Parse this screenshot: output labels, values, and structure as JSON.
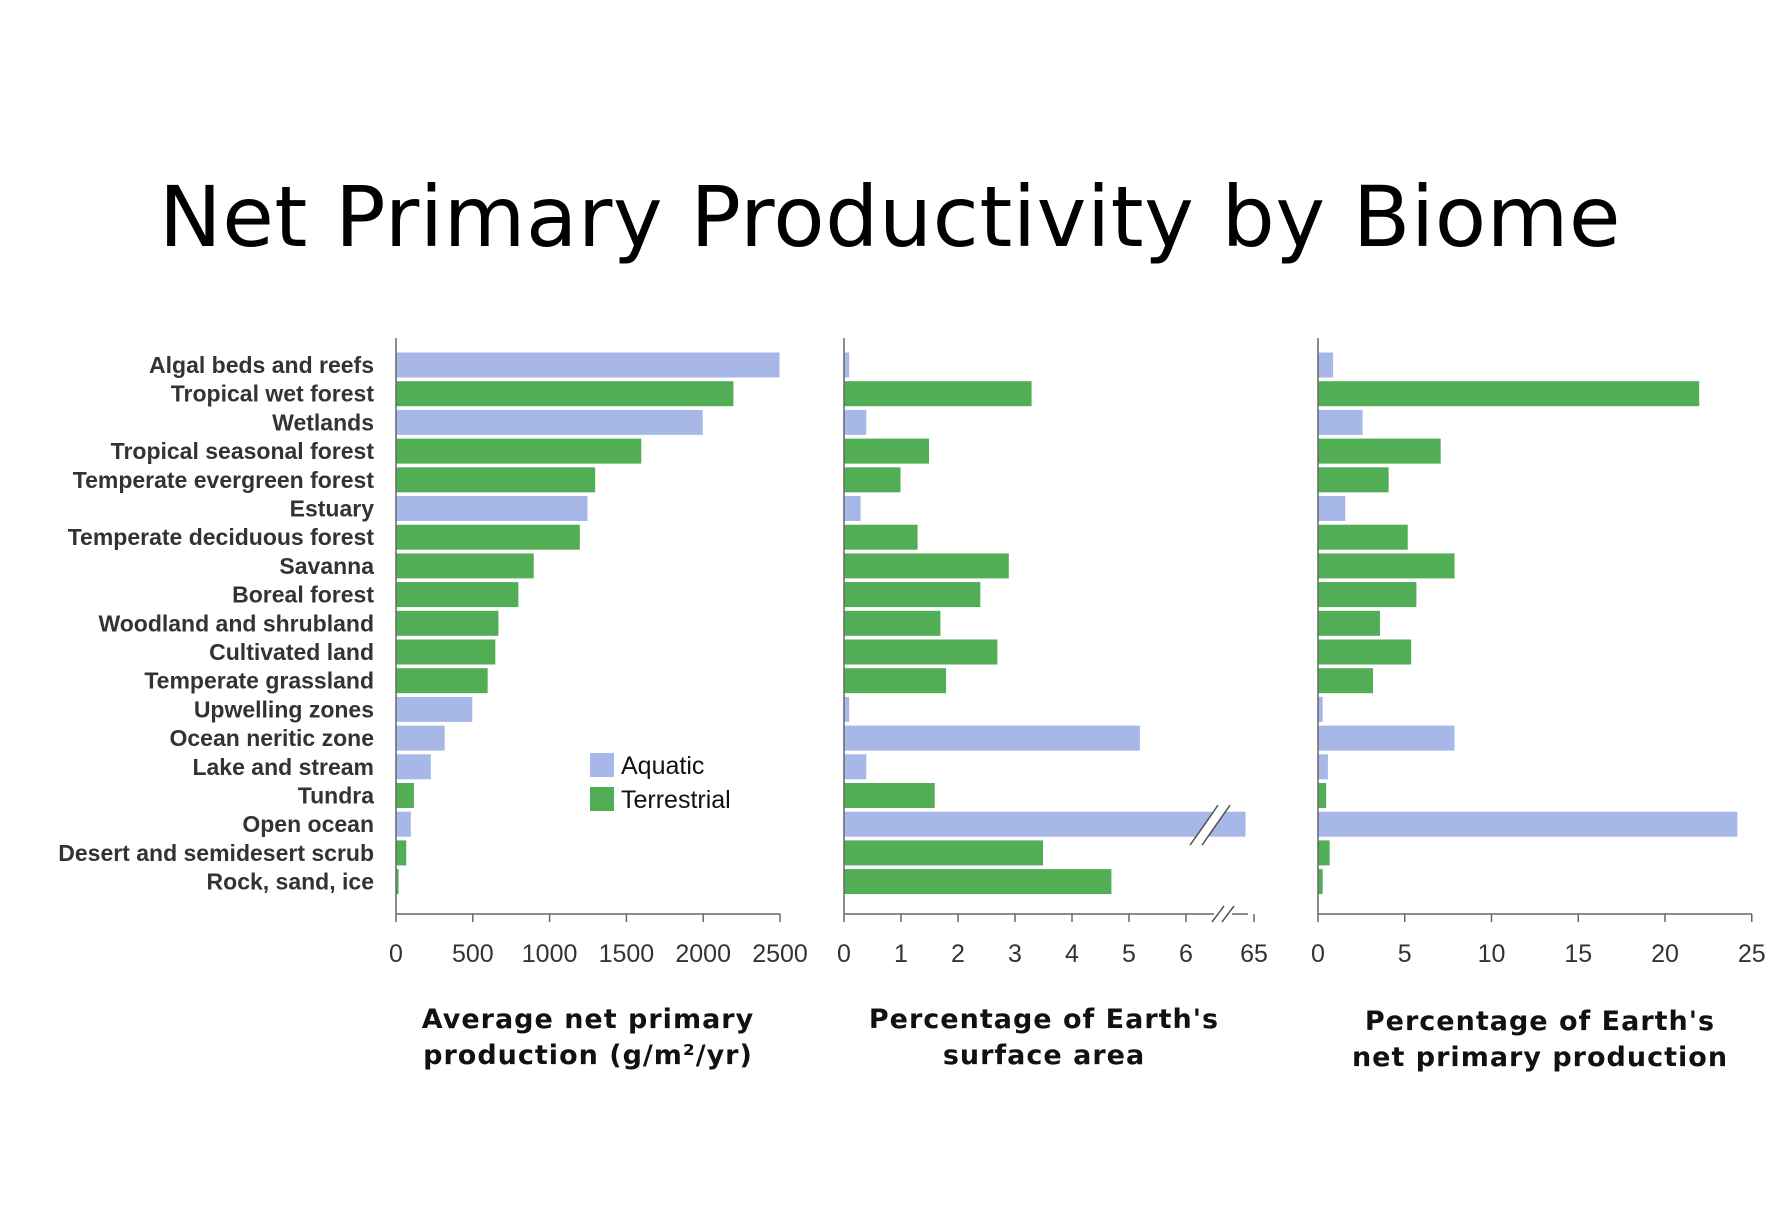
{
  "title": "Net Primary Productivity by Biome",
  "colors": {
    "Aquatic": "#a7b8e8",
    "Terrestrial": "#52ae55"
  },
  "legend": [
    {
      "label": "Aquatic",
      "type": "Aquatic"
    },
    {
      "label": "Terrestrial",
      "type": "Terrestrial"
    }
  ],
  "chart_data": [
    {
      "type": "bar",
      "orientation": "horizontal",
      "xlabel": [
        "Average net primary",
        "production (g/m²/yr)"
      ],
      "xlim": [
        0,
        2500
      ],
      "ticks": [
        "0",
        "500",
        "1000",
        "1500",
        "2000",
        "2500"
      ],
      "tick_values": [
        0,
        500,
        1000,
        1500,
        2000,
        2500
      ],
      "categories": [
        "Algal beds and reefs",
        "Tropical wet forest",
        "Wetlands",
        "Tropical seasonal forest",
        "Temperate evergreen forest",
        "Estuary",
        "Temperate deciduous forest",
        "Savanna",
        "Boreal forest",
        "Woodland and shrubland",
        "Cultivated land",
        "Temperate grassland",
        "Upwelling zones",
        "Ocean neritic zone",
        "Lake and stream",
        "Tundra",
        "Open ocean",
        "Desert and semidesert scrub",
        "Rock, sand, ice"
      ],
      "types": [
        "Aquatic",
        "Terrestrial",
        "Aquatic",
        "Terrestrial",
        "Terrestrial",
        "Aquatic",
        "Terrestrial",
        "Terrestrial",
        "Terrestrial",
        "Terrestrial",
        "Terrestrial",
        "Terrestrial",
        "Aquatic",
        "Aquatic",
        "Aquatic",
        "Terrestrial",
        "Aquatic",
        "Terrestrial",
        "Terrestrial"
      ],
      "values": [
        2500,
        2200,
        2000,
        1600,
        1300,
        1250,
        1200,
        900,
        800,
        670,
        650,
        600,
        500,
        320,
        230,
        120,
        100,
        70,
        20
      ]
    },
    {
      "type": "bar",
      "orientation": "horizontal",
      "xlabel": [
        "Percentage of Earth's",
        "surface area"
      ],
      "xlim": [
        0,
        6.5
      ],
      "axis_break": "6–65",
      "ticks": [
        "0",
        "1",
        "2",
        "3",
        "4",
        "5",
        "6",
        "65"
      ],
      "tick_values": [
        0,
        1,
        2,
        3,
        4,
        5,
        6,
        65
      ],
      "values": [
        0.1,
        3.3,
        0.4,
        1.5,
        1.0,
        0.3,
        1.3,
        2.9,
        2.4,
        1.7,
        2.7,
        1.8,
        0.1,
        5.2,
        0.4,
        1.6,
        65.0,
        3.5,
        4.7
      ]
    },
    {
      "type": "bar",
      "orientation": "horizontal",
      "xlabel": [
        "Percentage of Earth's",
        "net primary production"
      ],
      "xlim": [
        0,
        25
      ],
      "ticks": [
        "0",
        "5",
        "10",
        "15",
        "20",
        "25"
      ],
      "tick_values": [
        0,
        5,
        10,
        15,
        20,
        25
      ],
      "values": [
        0.9,
        22.0,
        2.6,
        7.1,
        4.1,
        1.6,
        5.2,
        7.9,
        5.7,
        3.6,
        5.4,
        3.2,
        0.3,
        7.9,
        0.6,
        0.5,
        24.2,
        0.7,
        0.3
      ]
    }
  ]
}
